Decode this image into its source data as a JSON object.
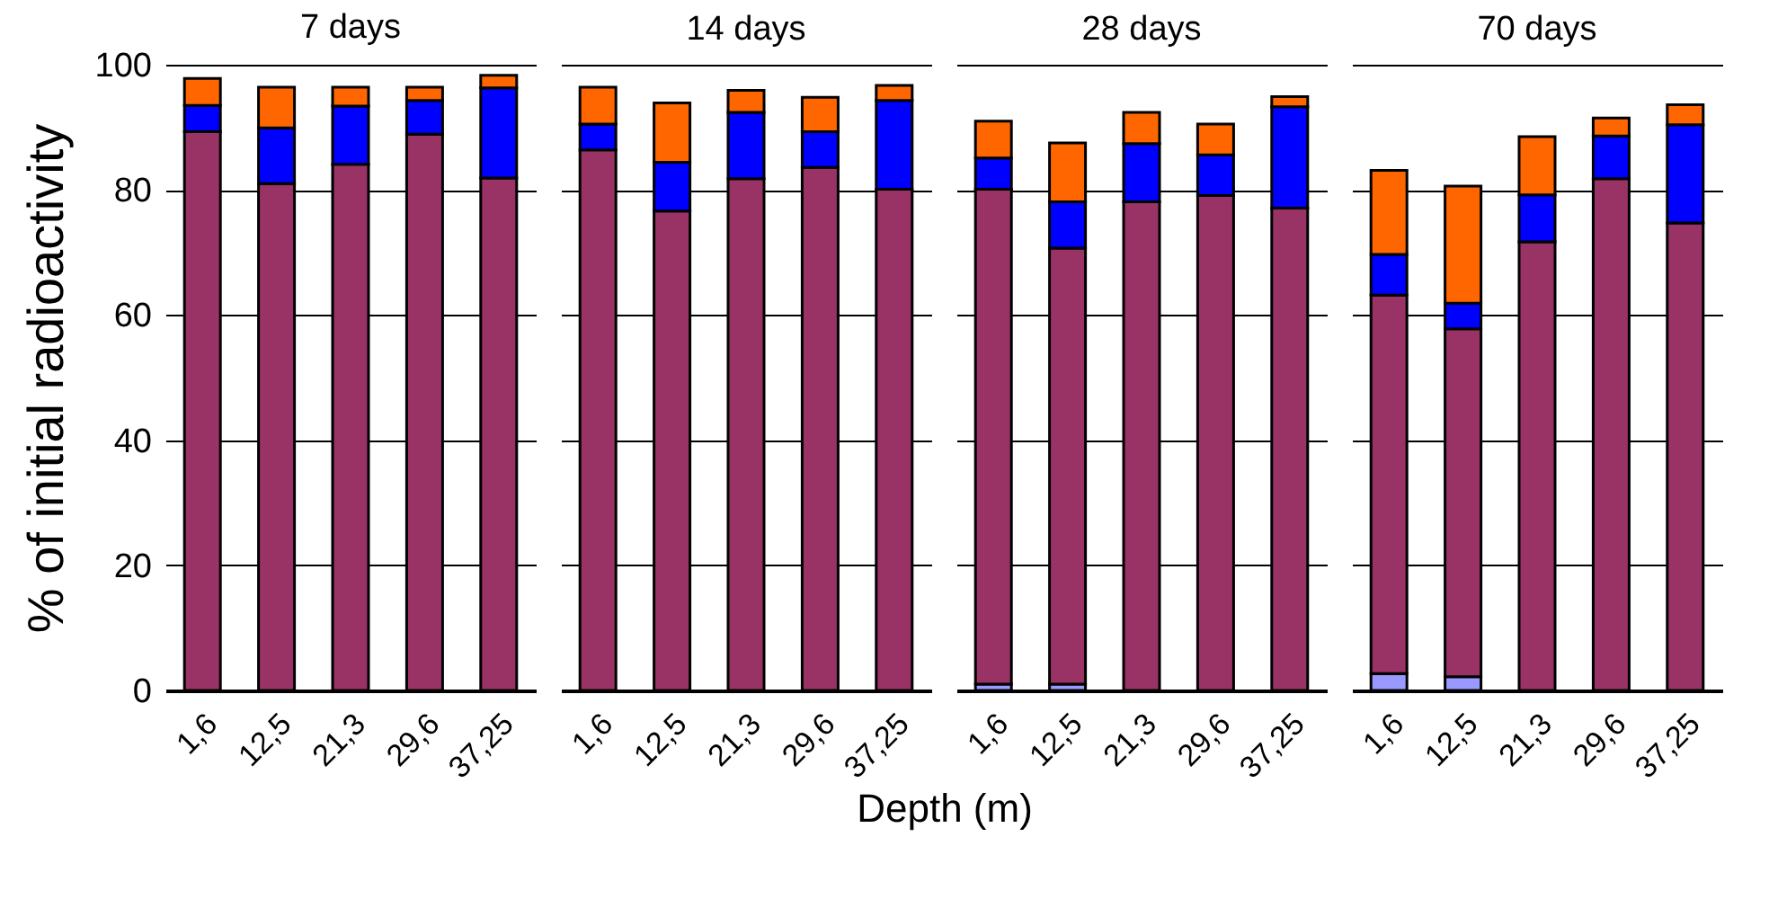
{
  "chart_data": [
    {
      "type": "bar",
      "title": "7 days",
      "ylabel": "% of initial radioactivity",
      "categories": [
        "1,6",
        "12,5",
        "21,3",
        "29,6",
        "37,25"
      ],
      "stacked": true,
      "ylim": [
        0,
        100
      ],
      "yticks": [
        0,
        20,
        40,
        60,
        80,
        100
      ],
      "grid": "y",
      "series": [
        {
          "color": "#9999ff",
          "values": [
            0,
            0,
            0,
            0,
            0
          ]
        },
        {
          "color": "#993366",
          "values": [
            89.3,
            81.0,
            84.1,
            88.9,
            81.9
          ]
        },
        {
          "color": "#0000ff",
          "values": [
            4.2,
            8.9,
            9.3,
            5.4,
            14.4
          ]
        },
        {
          "color": "#ff6600",
          "values": [
            4.3,
            6.5,
            3.0,
            2.1,
            2.0
          ]
        }
      ]
    },
    {
      "type": "bar",
      "title": "14 days",
      "xlabel": "Depth (m)",
      "categories": [
        "1,6",
        "12,5",
        "21,3",
        "29,6",
        "37,25"
      ],
      "stacked": true,
      "ylim": [
        0,
        100
      ],
      "yticks": [
        0,
        20,
        40,
        60,
        80,
        100
      ],
      "grid": "y",
      "tick_labels": "x",
      "series": [
        {
          "color": "#9999ff",
          "values": [
            0,
            0,
            0,
            0,
            0
          ]
        },
        {
          "color": "#993366",
          "values": [
            86.4,
            76.6,
            81.8,
            83.6,
            80.1
          ]
        },
        {
          "color": "#0000ff",
          "values": [
            4.1,
            7.8,
            10.6,
            5.7,
            14.2
          ]
        },
        {
          "color": "#ff6600",
          "values": [
            5.9,
            9.5,
            3.5,
            5.5,
            2.4
          ]
        }
      ]
    },
    {
      "type": "bar",
      "title": "28 days",
      "categories": [
        "1,6",
        "12,5",
        "21,3",
        "29,6",
        "37,25"
      ],
      "stacked": true,
      "ylim": [
        0,
        100
      ],
      "yticks": [
        0,
        20,
        40,
        60,
        80,
        100
      ],
      "grid": "y",
      "tick_labels": "x",
      "series": [
        {
          "color": "#9999ff",
          "values": [
            1.0,
            1.0,
            0,
            0,
            0
          ]
        },
        {
          "color": "#993366",
          "values": [
            79.1,
            69.7,
            78.1,
            79.1,
            77.1
          ]
        },
        {
          "color": "#0000ff",
          "values": [
            5.0,
            7.4,
            9.3,
            6.5,
            16.2
          ]
        },
        {
          "color": "#ff6600",
          "values": [
            5.9,
            9.4,
            5.0,
            4.9,
            1.6
          ]
        }
      ]
    },
    {
      "type": "bar",
      "title": "70 days",
      "categories": [
        "1,6",
        "12,5",
        "21,3",
        "29,6",
        "37,25"
      ],
      "stacked": true,
      "ylim": [
        0,
        100
      ],
      "yticks": [
        0,
        20,
        40,
        60,
        80,
        100
      ],
      "grid": "y",
      "tick_labels": "x",
      "series": [
        {
          "color": "#9999ff",
          "values": [
            2.7,
            2.2,
            0,
            0,
            0
          ]
        },
        {
          "color": "#993366",
          "values": [
            60.5,
            55.6,
            71.7,
            81.8,
            74.7
          ]
        },
        {
          "color": "#0000ff",
          "values": [
            6.5,
            4.1,
            7.5,
            6.8,
            15.7
          ]
        },
        {
          "color": "#ff6600",
          "values": [
            13.4,
            18.7,
            9.3,
            2.9,
            3.2
          ]
        }
      ]
    }
  ]
}
